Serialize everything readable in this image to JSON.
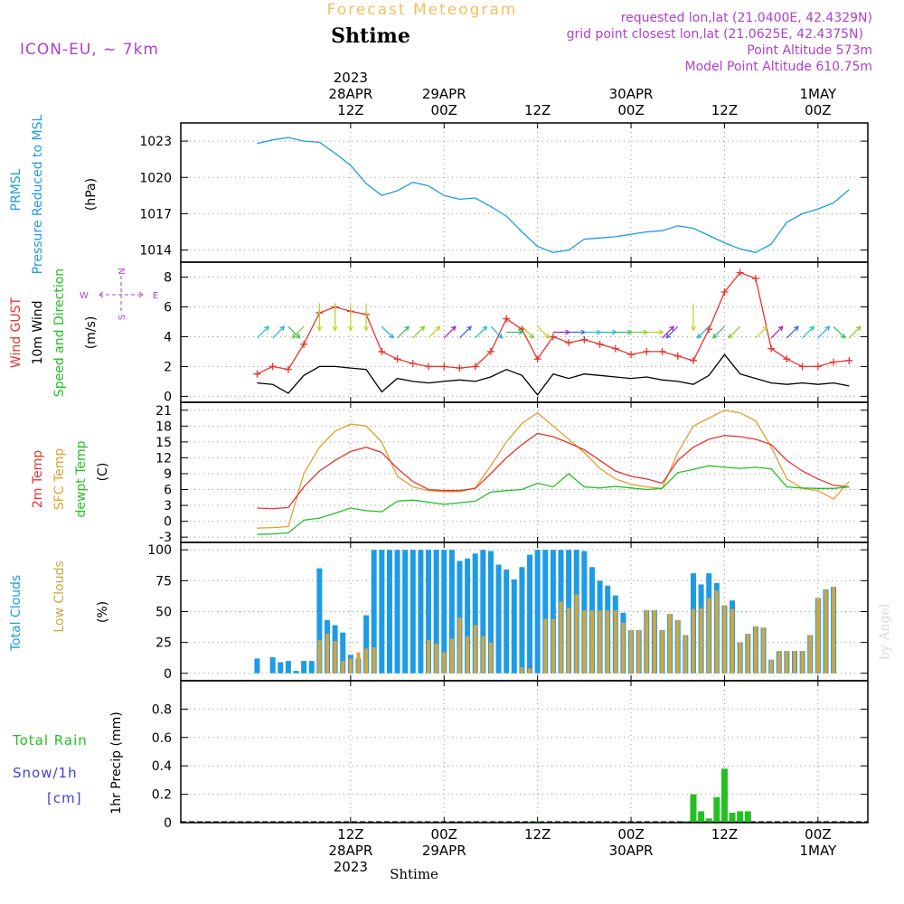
{
  "header": {
    "product": "Forecast Meteogram",
    "location": "Shtime",
    "model": "ICON-EU, ~ 7km",
    "requested": "requested lon,lat (21.0400E, 42.4329N)",
    "grid": "grid point closest lon,lat (21.0625E, 42.4375N)",
    "altitude": "Point Altitude 573m",
    "model_altitude": "Model Point Altitude 610.75m",
    "footer_location": "Shtime",
    "watermark": "by Angel"
  },
  "time_axis": {
    "top": [
      {
        "lines": [
          "2023",
          "28APR",
          "12Z"
        ],
        "hour": 12
      },
      {
        "lines": [
          "29APR",
          "00Z"
        ],
        "hour": 24
      },
      {
        "lines": [
          "12Z"
        ],
        "hour": 36
      },
      {
        "lines": [
          "30APR",
          "00Z"
        ],
        "hour": 48
      },
      {
        "lines": [
          "12Z"
        ],
        "hour": 60
      },
      {
        "lines": [
          "1MAY",
          "00Z"
        ],
        "hour": 72
      }
    ],
    "bottom": [
      {
        "lines": [
          "12Z",
          "28APR",
          "2023"
        ],
        "hour": 12
      },
      {
        "lines": [
          "00Z",
          "29APR"
        ],
        "hour": 24
      },
      {
        "lines": [
          "12Z"
        ],
        "hour": 36
      },
      {
        "lines": [
          "00Z",
          "30APR"
        ],
        "hour": 48
      },
      {
        "lines": [
          "12Z"
        ],
        "hour": 60
      },
      {
        "lines": [
          "00Z",
          "1MAY"
        ],
        "hour": 72
      }
    ]
  },
  "panel_labels": {
    "pressure": {
      "lines": [
        "PRMSL",
        "Pressure Reduced to MSL"
      ],
      "unit": "(hPa)"
    },
    "wind": {
      "gust": "Wind GUST",
      "speed": "10m Wind",
      "dir": "Speed and Direction",
      "unit": "(m/s)",
      "compass": {
        "n": "N",
        "s": "S",
        "w": "W",
        "e": "E"
      }
    },
    "temp": {
      "t2m": "2m Temp",
      "sfc": "SFC Temp",
      "dew": "dewpt Temp",
      "unit": "(C)"
    },
    "clouds": {
      "total": "Total Clouds",
      "low": "Low Clouds",
      "unit": "(%)"
    },
    "precip": {
      "rain": "Total  Rain",
      "snow": "Snow/1h",
      "snow_unit": "[cm]",
      "axis": "1hr Precip (mm)"
    }
  },
  "colors": {
    "pressure": "#1e9be6",
    "gust": "#e8342f",
    "wind": "#000000",
    "t2m": "#e8342f",
    "sfc": "#e0a030",
    "dew": "#22c022",
    "total_clouds": "#1e9be6",
    "low_clouds": "#d4a53c",
    "rain": "#22c022",
    "snow": "#4040e0",
    "title": "#f0c060",
    "purple": "#b040d0"
  },
  "chart_data": [
    {
      "type": "line",
      "title": "PRMSL Pressure Reduced to MSL",
      "ylabel": "(hPa)",
      "ylim": [
        1013,
        1024.5
      ],
      "yticks": [
        1014,
        1017,
        1020,
        1023
      ],
      "x_hours": [
        0,
        2,
        4,
        6,
        8,
        10,
        12,
        14,
        16,
        18,
        20,
        22,
        24,
        26,
        28,
        30,
        32,
        34,
        36,
        38,
        40,
        42,
        44,
        46,
        48,
        50,
        52,
        54,
        56,
        58,
        60,
        62,
        64,
        66,
        68,
        70,
        72,
        74,
        76
      ],
      "series": [
        {
          "name": "PRMSL",
          "values": [
            1022.8,
            1023.1,
            1023.3,
            1023.0,
            1022.9,
            1022.0,
            1021.0,
            1019.5,
            1018.5,
            1018.9,
            1019.6,
            1019.3,
            1018.5,
            1018.2,
            1018.3,
            1017.6,
            1016.8,
            1015.5,
            1014.3,
            1013.8,
            1014.0,
            1014.9,
            1015.0,
            1015.1,
            1015.3,
            1015.5,
            1015.6,
            1016.0,
            1015.8,
            1015.2,
            1014.6,
            1014.1,
            1013.8,
            1014.5,
            1016.3,
            1017.0,
            1017.4,
            1017.9,
            1019.0
          ]
        }
      ]
    },
    {
      "type": "line",
      "title": "Wind GUST / 10m Wind Speed and Direction",
      "ylabel": "(m/s)",
      "ylim": [
        -0.4,
        9
      ],
      "yticks": [
        0,
        2,
        4,
        6,
        8
      ],
      "x_hours": [
        0,
        2,
        4,
        6,
        8,
        10,
        12,
        14,
        16,
        18,
        20,
        22,
        24,
        26,
        28,
        30,
        32,
        34,
        36,
        38,
        40,
        42,
        44,
        46,
        48,
        50,
        52,
        54,
        56,
        58,
        60,
        62,
        64,
        66,
        68,
        70,
        72,
        74,
        76
      ],
      "series": [
        {
          "name": "Wind GUST",
          "values": [
            1.5,
            2.0,
            1.8,
            3.5,
            5.6,
            6.0,
            5.7,
            5.5,
            3.0,
            2.5,
            2.2,
            2.0,
            2.0,
            1.9,
            2.0,
            3.0,
            5.2,
            4.5,
            2.5,
            4.0,
            3.6,
            3.8,
            3.5,
            3.2,
            2.8,
            3.0,
            3.0,
            2.7,
            2.4,
            4.5,
            7.0,
            8.3,
            7.9,
            3.2,
            2.5,
            2.0,
            2.0,
            2.3,
            2.4
          ]
        },
        {
          "name": "10m Wind",
          "values": [
            0.9,
            0.8,
            0.2,
            1.4,
            2.0,
            2.0,
            1.9,
            1.8,
            0.3,
            1.2,
            1.0,
            0.9,
            1.0,
            1.1,
            1.0,
            1.3,
            1.8,
            1.4,
            0.1,
            1.5,
            1.2,
            1.5,
            1.4,
            1.3,
            1.2,
            1.3,
            1.1,
            1.0,
            0.8,
            1.4,
            2.8,
            1.5,
            1.2,
            0.9,
            0.8,
            0.9,
            0.8,
            0.9,
            0.7
          ]
        }
      ],
      "wind_arrows": [
        {
          "hour": 0,
          "dir": "SW"
        },
        {
          "hour": 2,
          "dir": "SW"
        },
        {
          "hour": 4,
          "dir": "NW"
        },
        {
          "hour": 6,
          "dir": "NE"
        },
        {
          "hour": 8,
          "dir": "N"
        },
        {
          "hour": 10,
          "dir": "N"
        },
        {
          "hour": 12,
          "dir": "N"
        },
        {
          "hour": 14,
          "dir": "N"
        },
        {
          "hour": 16,
          "dir": "NW"
        },
        {
          "hour": 18,
          "dir": "SW"
        },
        {
          "hour": 20,
          "dir": "SW"
        },
        {
          "hour": 22,
          "dir": "SW"
        },
        {
          "hour": 24,
          "dir": "SW"
        },
        {
          "hour": 26,
          "dir": "SW"
        },
        {
          "hour": 28,
          "dir": "SW"
        },
        {
          "hour": 30,
          "dir": "NW"
        },
        {
          "hour": 32,
          "dir": "W"
        },
        {
          "hour": 34,
          "dir": "NW"
        },
        {
          "hour": 36,
          "dir": "NW"
        },
        {
          "hour": 38,
          "dir": "W"
        },
        {
          "hour": 40,
          "dir": "W"
        },
        {
          "hour": 42,
          "dir": "W"
        },
        {
          "hour": 44,
          "dir": "W"
        },
        {
          "hour": 46,
          "dir": "W"
        },
        {
          "hour": 48,
          "dir": "W"
        },
        {
          "hour": 50,
          "dir": "W"
        },
        {
          "hour": 52,
          "dir": "SW"
        },
        {
          "hour": 54,
          "dir": "NE"
        },
        {
          "hour": 56,
          "dir": "N"
        },
        {
          "hour": 58,
          "dir": "NE"
        },
        {
          "hour": 60,
          "dir": "NE"
        },
        {
          "hour": 62,
          "dir": "NE"
        },
        {
          "hour": 64,
          "dir": "SW"
        },
        {
          "hour": 66,
          "dir": "SW"
        },
        {
          "hour": 68,
          "dir": "SW"
        },
        {
          "hour": 70,
          "dir": "SW"
        },
        {
          "hour": 72,
          "dir": "SW"
        },
        {
          "hour": 74,
          "dir": "NW"
        },
        {
          "hour": 76,
          "dir": "SW"
        }
      ]
    },
    {
      "type": "line",
      "title": "2m Temp / SFC Temp / dewpt Temp",
      "ylabel": "(C)",
      "ylim": [
        -4,
        22.5
      ],
      "yticks": [
        -3,
        0,
        3,
        6,
        9,
        12,
        15,
        18,
        21
      ],
      "x_hours": [
        0,
        2,
        4,
        6,
        8,
        10,
        12,
        14,
        16,
        18,
        20,
        22,
        24,
        26,
        28,
        30,
        32,
        34,
        36,
        38,
        40,
        42,
        44,
        46,
        48,
        50,
        52,
        54,
        56,
        58,
        60,
        62,
        64,
        66,
        68,
        70,
        72,
        74,
        76
      ],
      "series": [
        {
          "name": "2m Temp",
          "values": [
            2.5,
            2.4,
            2.6,
            6.5,
            9.5,
            11.5,
            13.2,
            14.0,
            13.0,
            10.0,
            7.5,
            6.0,
            5.8,
            5.8,
            6.2,
            9.0,
            12.0,
            14.5,
            16.6,
            16.0,
            14.8,
            13.5,
            11.5,
            9.5,
            8.5,
            8.0,
            7.2,
            11.5,
            14.0,
            15.5,
            16.2,
            16.0,
            15.5,
            14.5,
            11.5,
            9.5,
            8.0,
            6.8,
            6.5
          ]
        },
        {
          "name": "SFC Temp",
          "values": [
            -1.3,
            -1.2,
            -1.0,
            9.0,
            14.0,
            17.0,
            18.4,
            18.0,
            15.0,
            8.5,
            6.5,
            5.8,
            5.6,
            5.6,
            6.3,
            10.5,
            15.0,
            18.5,
            20.5,
            18.0,
            15.5,
            13.0,
            10.0,
            8.0,
            7.0,
            6.5,
            6.2,
            13.0,
            18.0,
            19.5,
            21.0,
            20.5,
            19.0,
            14.0,
            8.0,
            6.2,
            5.8,
            4.2,
            7.5
          ]
        },
        {
          "name": "dewpt Temp",
          "values": [
            -2.5,
            -2.4,
            -2.2,
            0.2,
            0.6,
            1.5,
            2.5,
            2.0,
            1.8,
            3.8,
            4.0,
            3.6,
            3.2,
            3.5,
            3.8,
            5.5,
            5.8,
            6.0,
            7.2,
            6.5,
            9.0,
            6.5,
            6.3,
            6.6,
            6.3,
            6.0,
            6.2,
            9.2,
            9.8,
            10.5,
            10.2,
            10.0,
            10.2,
            9.9,
            6.5,
            6.3,
            6.2,
            6.2,
            6.5
          ]
        }
      ]
    },
    {
      "type": "bar",
      "title": "Total Clouds / Low Clouds",
      "ylabel": "(%)",
      "ylim": [
        -6,
        106
      ],
      "yticks": [
        0,
        25,
        50,
        75,
        100
      ],
      "x_hours": [
        0,
        1,
        2,
        3,
        4,
        5,
        6,
        7,
        8,
        9,
        10,
        11,
        12,
        13,
        14,
        15,
        16,
        17,
        18,
        19,
        20,
        21,
        22,
        23,
        24,
        25,
        26,
        27,
        28,
        29,
        30,
        31,
        32,
        33,
        34,
        35,
        36,
        37,
        38,
        39,
        40,
        41,
        42,
        43,
        44,
        45,
        46,
        47,
        48,
        49,
        50,
        51,
        52,
        53,
        54,
        55,
        56,
        57,
        58,
        59,
        60,
        61,
        62,
        63,
        64,
        65,
        66,
        67,
        68,
        69,
        70,
        71,
        72,
        73,
        74,
        75,
        76
      ],
      "series": [
        {
          "name": "Total Clouds",
          "values": [
            12,
            0,
            13,
            9,
            10,
            2,
            10,
            10,
            85,
            43,
            39,
            33,
            15,
            12,
            47,
            100,
            100,
            100,
            100,
            100,
            100,
            100,
            100,
            100,
            100,
            100,
            91,
            93,
            97,
            100,
            99,
            88,
            84,
            76,
            86,
            96,
            100,
            100,
            100,
            100,
            100,
            100,
            99,
            86,
            75,
            71,
            63,
            49,
            35,
            35,
            51,
            51,
            35,
            48,
            43,
            31,
            81,
            72,
            81,
            73,
            55,
            59,
            25,
            32,
            38,
            37,
            11,
            18,
            18,
            18,
            18,
            31,
            61,
            68,
            70,
            0,
            0
          ]
        },
        {
          "name": "Low Clouds",
          "values": [
            0,
            0,
            0,
            0,
            0,
            0,
            0,
            0,
            27,
            32,
            26,
            10,
            12,
            17,
            20,
            21,
            0,
            0,
            0,
            0,
            0,
            0,
            27,
            24,
            17,
            28,
            45,
            30,
            39,
            30,
            25,
            0,
            0,
            0,
            5,
            4,
            0,
            44,
            44,
            58,
            53,
            64,
            51,
            51,
            51,
            51,
            51,
            41,
            35,
            35,
            51,
            51,
            35,
            48,
            43,
            31,
            52,
            53,
            61,
            67,
            55,
            52,
            25,
            32,
            38,
            37,
            11,
            18,
            18,
            18,
            18,
            31,
            61,
            68,
            70,
            0,
            0
          ]
        }
      ]
    },
    {
      "type": "bar",
      "title": "Total Rain / Snow/1h",
      "ylabel": "1hr Precip (mm)",
      "ylim": [
        0,
        1.0
      ],
      "yticks": [
        0,
        0.2,
        0.4,
        0.6,
        0.8
      ],
      "x_hours": [
        36,
        55,
        56,
        57,
        58,
        59,
        60,
        61,
        62,
        63
      ],
      "series": [
        {
          "name": "Total Rain",
          "values": [
            0.01,
            0.01,
            0.2,
            0.08,
            0.03,
            0.18,
            0.38,
            0.07,
            0.08,
            0.08
          ]
        },
        {
          "name": "Snow/1h",
          "values": [
            0,
            0,
            0,
            0,
            0,
            0,
            0,
            0,
            0,
            0
          ]
        }
      ]
    }
  ]
}
